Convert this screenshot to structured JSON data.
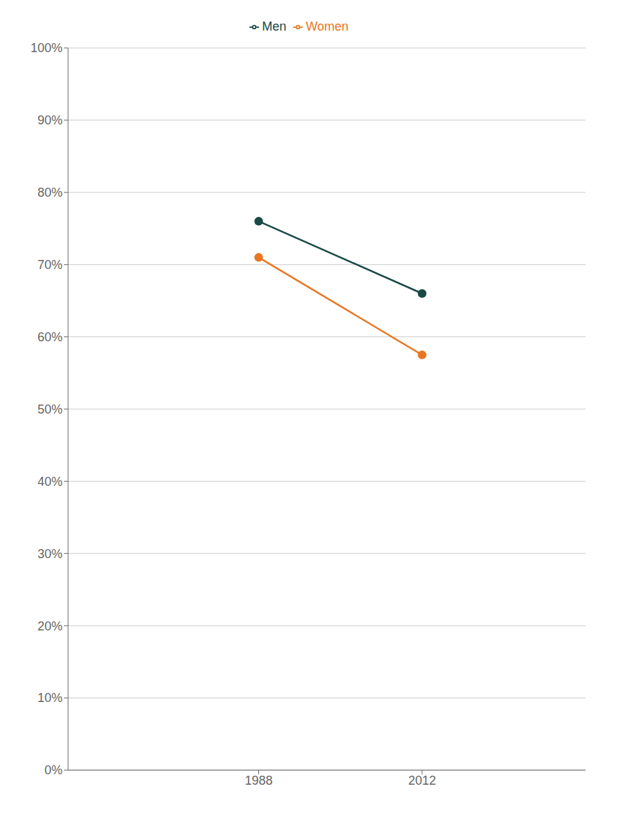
{
  "chart_data": {
    "type": "line",
    "x": [
      1988,
      2012
    ],
    "series": [
      {
        "name": "Men",
        "color": "#1a4a45",
        "values": [
          0.76,
          0.66
        ],
        "marker": "circle"
      },
      {
        "name": "Women",
        "color": "#e87722",
        "values": [
          0.71,
          0.575
        ],
        "marker": "circle"
      }
    ],
    "xlim": [
      1960,
      2036
    ],
    "xticks": [
      1988,
      2012
    ],
    "ylim": [
      0,
      1.0
    ],
    "yticks": [
      {
        "value": 0.0,
        "label": "0%"
      },
      {
        "value": 0.1,
        "label": "10%"
      },
      {
        "value": 0.2,
        "label": "20%"
      },
      {
        "value": 0.3,
        "label": "30%"
      },
      {
        "value": 0.4,
        "label": "40%"
      },
      {
        "value": 0.5,
        "label": "50%"
      },
      {
        "value": 0.6,
        "label": "60%"
      },
      {
        "value": 0.7,
        "label": "70%"
      },
      {
        "value": 0.8,
        "label": "80%"
      },
      {
        "value": 0.9,
        "label": "90%"
      },
      {
        "value": 1.0,
        "label": "100%"
      }
    ],
    "grid": true,
    "legend": "top"
  }
}
